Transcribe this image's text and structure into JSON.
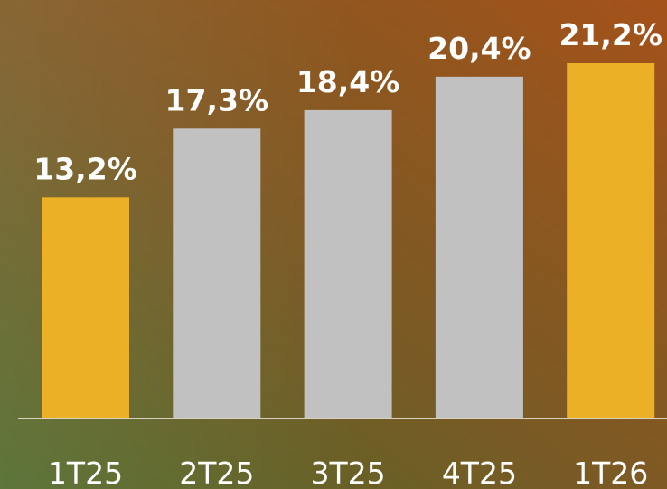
{
  "chart_data": {
    "type": "bar",
    "categories": [
      "1T25",
      "2T25",
      "3T25",
      "4T25",
      "1T26"
    ],
    "values": [
      13.2,
      17.3,
      18.4,
      20.4,
      21.2
    ],
    "value_labels": [
      "13,2%",
      "17,3%",
      "18,4%",
      "20,4%",
      "21,2%"
    ],
    "colors": [
      "#ebb026",
      "#c1c1c1",
      "#c1c1c1",
      "#c1c1c1",
      "#ebb026"
    ]
  }
}
